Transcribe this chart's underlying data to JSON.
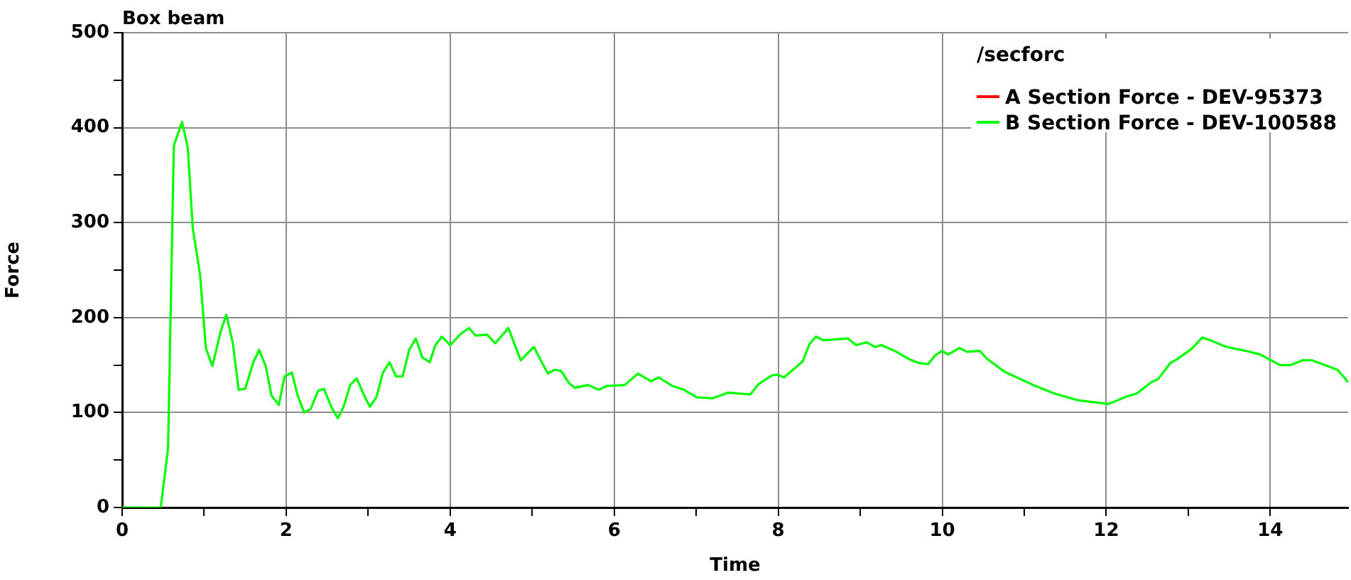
{
  "chart_data": {
    "type": "line",
    "title": "Box beam",
    "xlabel": "Time",
    "ylabel": "Force",
    "legend_title": "/secforc",
    "legend": "top right",
    "grid": true,
    "marker": "none",
    "line_style": "solid",
    "xlim": [
      0,
      14.95
    ],
    "xticks": [
      0,
      {
        "value": 1,
        "label": null
      },
      2,
      {
        "value": 3,
        "label": null
      },
      4,
      {
        "value": 5,
        "label": null
      },
      6,
      {
        "value": 7,
        "label": null
      },
      8,
      {
        "value": 9,
        "label": null
      },
      10,
      {
        "value": 11,
        "label": null
      },
      12,
      {
        "value": 13,
        "label": null
      },
      14
    ],
    "ylim": [
      0,
      500
    ],
    "yticks": [
      0,
      {
        "value": 50,
        "label": null
      },
      100,
      {
        "value": 150,
        "label": null
      },
      200,
      {
        "value": 250,
        "label": null
      },
      300,
      {
        "value": 350,
        "label": null
      },
      400,
      {
        "value": 450,
        "label": null
      },
      500
    ],
    "x": [
      0,
      0.47,
      0.56,
      0.63,
      0.73,
      0.8,
      0.86,
      0.95,
      1.02,
      1.1,
      1.2,
      1.27,
      1.35,
      1.42,
      1.5,
      1.6,
      1.67,
      1.75,
      1.82,
      1.91,
      1.98,
      2.07,
      2.14,
      2.22,
      2.3,
      2.39,
      2.46,
      2.55,
      2.63,
      2.7,
      2.78,
      2.86,
      2.94,
      3.02,
      3.1,
      3.18,
      3.26,
      3.34,
      3.42,
      3.5,
      3.58,
      3.66,
      3.75,
      3.82,
      3.9,
      4.0,
      4.13,
      4.23,
      4.31,
      4.45,
      4.55,
      4.71,
      4.86,
      5.02,
      5.19,
      5.27,
      5.35,
      5.45,
      5.52,
      5.68,
      5.81,
      5.91,
      6.13,
      6.29,
      6.45,
      6.54,
      6.71,
      6.85,
      7.01,
      7.2,
      7.39,
      7.66,
      7.76,
      7.92,
      7.99,
      8.07,
      8.18,
      8.3,
      8.38,
      8.46,
      8.55,
      8.85,
      8.95,
      9.08,
      9.18,
      9.26,
      9.44,
      9.6,
      9.72,
      9.83,
      9.91,
      10.0,
      10.07,
      10.21,
      10.3,
      10.46,
      10.54,
      10.76,
      11.11,
      11.37,
      11.65,
      11.83,
      12.03,
      12.25,
      12.37,
      12.55,
      12.63,
      12.78,
      12.86,
      13.04,
      13.17,
      13.27,
      13.47,
      13.7,
      13.88,
      14.12,
      14.25,
      14.39,
      14.51,
      14.82,
      14.95
    ],
    "series": [
      {
        "name": "A Section Force - DEV-95373",
        "color": "#ff0000",
        "values": [
          null,
          null,
          null,
          null,
          null,
          null,
          null,
          null,
          null,
          null,
          null,
          null,
          null,
          null,
          null,
          null,
          null,
          null,
          null,
          null,
          null,
          null,
          null,
          null,
          null,
          null,
          null,
          null,
          null,
          null,
          null,
          null,
          null,
          null,
          null,
          null,
          null,
          null,
          null,
          null,
          null,
          null,
          null,
          null,
          null,
          null,
          null,
          null,
          null,
          null,
          null,
          null,
          null,
          null,
          null,
          null,
          null,
          null,
          null,
          null,
          null,
          null,
          null,
          null,
          null,
          null,
          null,
          null,
          null,
          null,
          null,
          null,
          null,
          null,
          null,
          null,
          null,
          null,
          null,
          null,
          null,
          null,
          null,
          null,
          null,
          null,
          null,
          null,
          null,
          null,
          null,
          null,
          null,
          null,
          null,
          null,
          null,
          null,
          null,
          null,
          null,
          null,
          null,
          null,
          null,
          null,
          null,
          null,
          null,
          null,
          null,
          null,
          null,
          null,
          null,
          null,
          null,
          null,
          null,
          null,
          null
        ]
      },
      {
        "name": "B Section Force - DEV-100588",
        "color": "#00ff00",
        "values": [
          0,
          0,
          63,
          381,
          406,
          379,
          295,
          245,
          168,
          149,
          185,
          203,
          173,
          124,
          125,
          153,
          166,
          149,
          118,
          108,
          138,
          142,
          118,
          100,
          104,
          123,
          125,
          106,
          94,
          106,
          129,
          136,
          120,
          106,
          116,
          142,
          153,
          138,
          138,
          166,
          178,
          158,
          153,
          171,
          180,
          171,
          183,
          189,
          181,
          182,
          173,
          189,
          155,
          169,
          141,
          145,
          144,
          131,
          126,
          129,
          124,
          128,
          129,
          141,
          133,
          137,
          128,
          124,
          116,
          115,
          121,
          119,
          130,
          139,
          140,
          137,
          145,
          154,
          172,
          180,
          176,
          178,
          171,
          174,
          169,
          171,
          164,
          156,
          152,
          151,
          160,
          165,
          161,
          168,
          164,
          165,
          157,
          143,
          129,
          120,
          113,
          111,
          109,
          117,
          120,
          132,
          135,
          152,
          156,
          167,
          179,
          176,
          169,
          165,
          161,
          150,
          150,
          155,
          155,
          145,
          132
        ]
      }
    ]
  }
}
